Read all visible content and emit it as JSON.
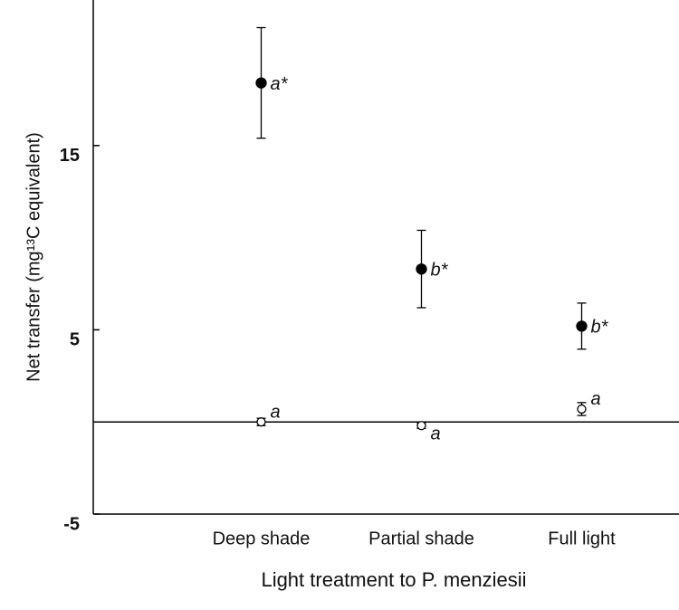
{
  "chart_data": {
    "type": "errorbar",
    "xlabel": "Light treatment to P. menziesii",
    "ylabel": "Net transfer (mg¹³C equivalent)",
    "categories": [
      "Deep shade",
      "Partial shade",
      "Full light"
    ],
    "series": [
      {
        "marker": "filled",
        "color": "#000000",
        "values": [
          18.4,
          8.3,
          5.2
        ],
        "errors": [
          3.0,
          2.1,
          1.25
        ],
        "labels": [
          "a*",
          "b*",
          "b*"
        ]
      },
      {
        "marker": "open",
        "color": "#000000",
        "values": [
          0.0,
          -0.2,
          0.7
        ],
        "errors": [
          0.2,
          0.15,
          0.35
        ],
        "labels": [
          "a",
          "a",
          "a"
        ]
      }
    ],
    "ylim": [
      -5,
      22.9
    ],
    "yticks": [
      -5,
      5,
      15
    ]
  }
}
